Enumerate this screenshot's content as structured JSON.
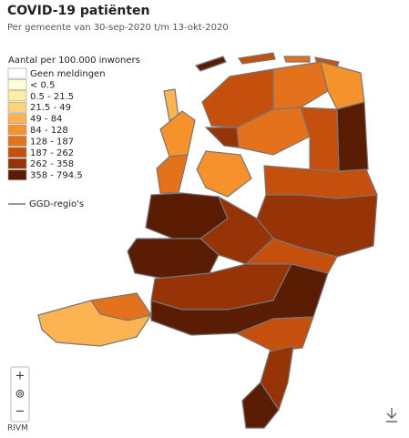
{
  "header": {
    "title": "COVID-19 patiënten",
    "subtitle": "Per gemeente van 30-sep-2020 t/m 13-okt-2020"
  },
  "legend": {
    "title": "Aantal per 100.000 inwoners",
    "items": [
      {
        "label": "Geen meldingen",
        "color": "#ffffff"
      },
      {
        "label": "< 0.5",
        "color": "#fffbd6"
      },
      {
        "label": "0.5 - 21.5",
        "color": "#fdeea0"
      },
      {
        "label": "21.5 - 49",
        "color": "#fdd37e"
      },
      {
        "label": "49 - 84",
        "color": "#fbb451"
      },
      {
        "label": "84 - 128",
        "color": "#f5922c"
      },
      {
        "label": "128 - 187",
        "color": "#e4711b"
      },
      {
        "label": "187 - 262",
        "color": "#c5500e"
      },
      {
        "label": "262 - 358",
        "color": "#963307"
      },
      {
        "label": "358 - 794.5",
        "color": "#5a1d04"
      }
    ],
    "ggd_label": "GGD-regio's"
  },
  "controls": {
    "zoom_in": "+",
    "locate": "⊚",
    "zoom_out": "−"
  },
  "source": "RIVM"
}
